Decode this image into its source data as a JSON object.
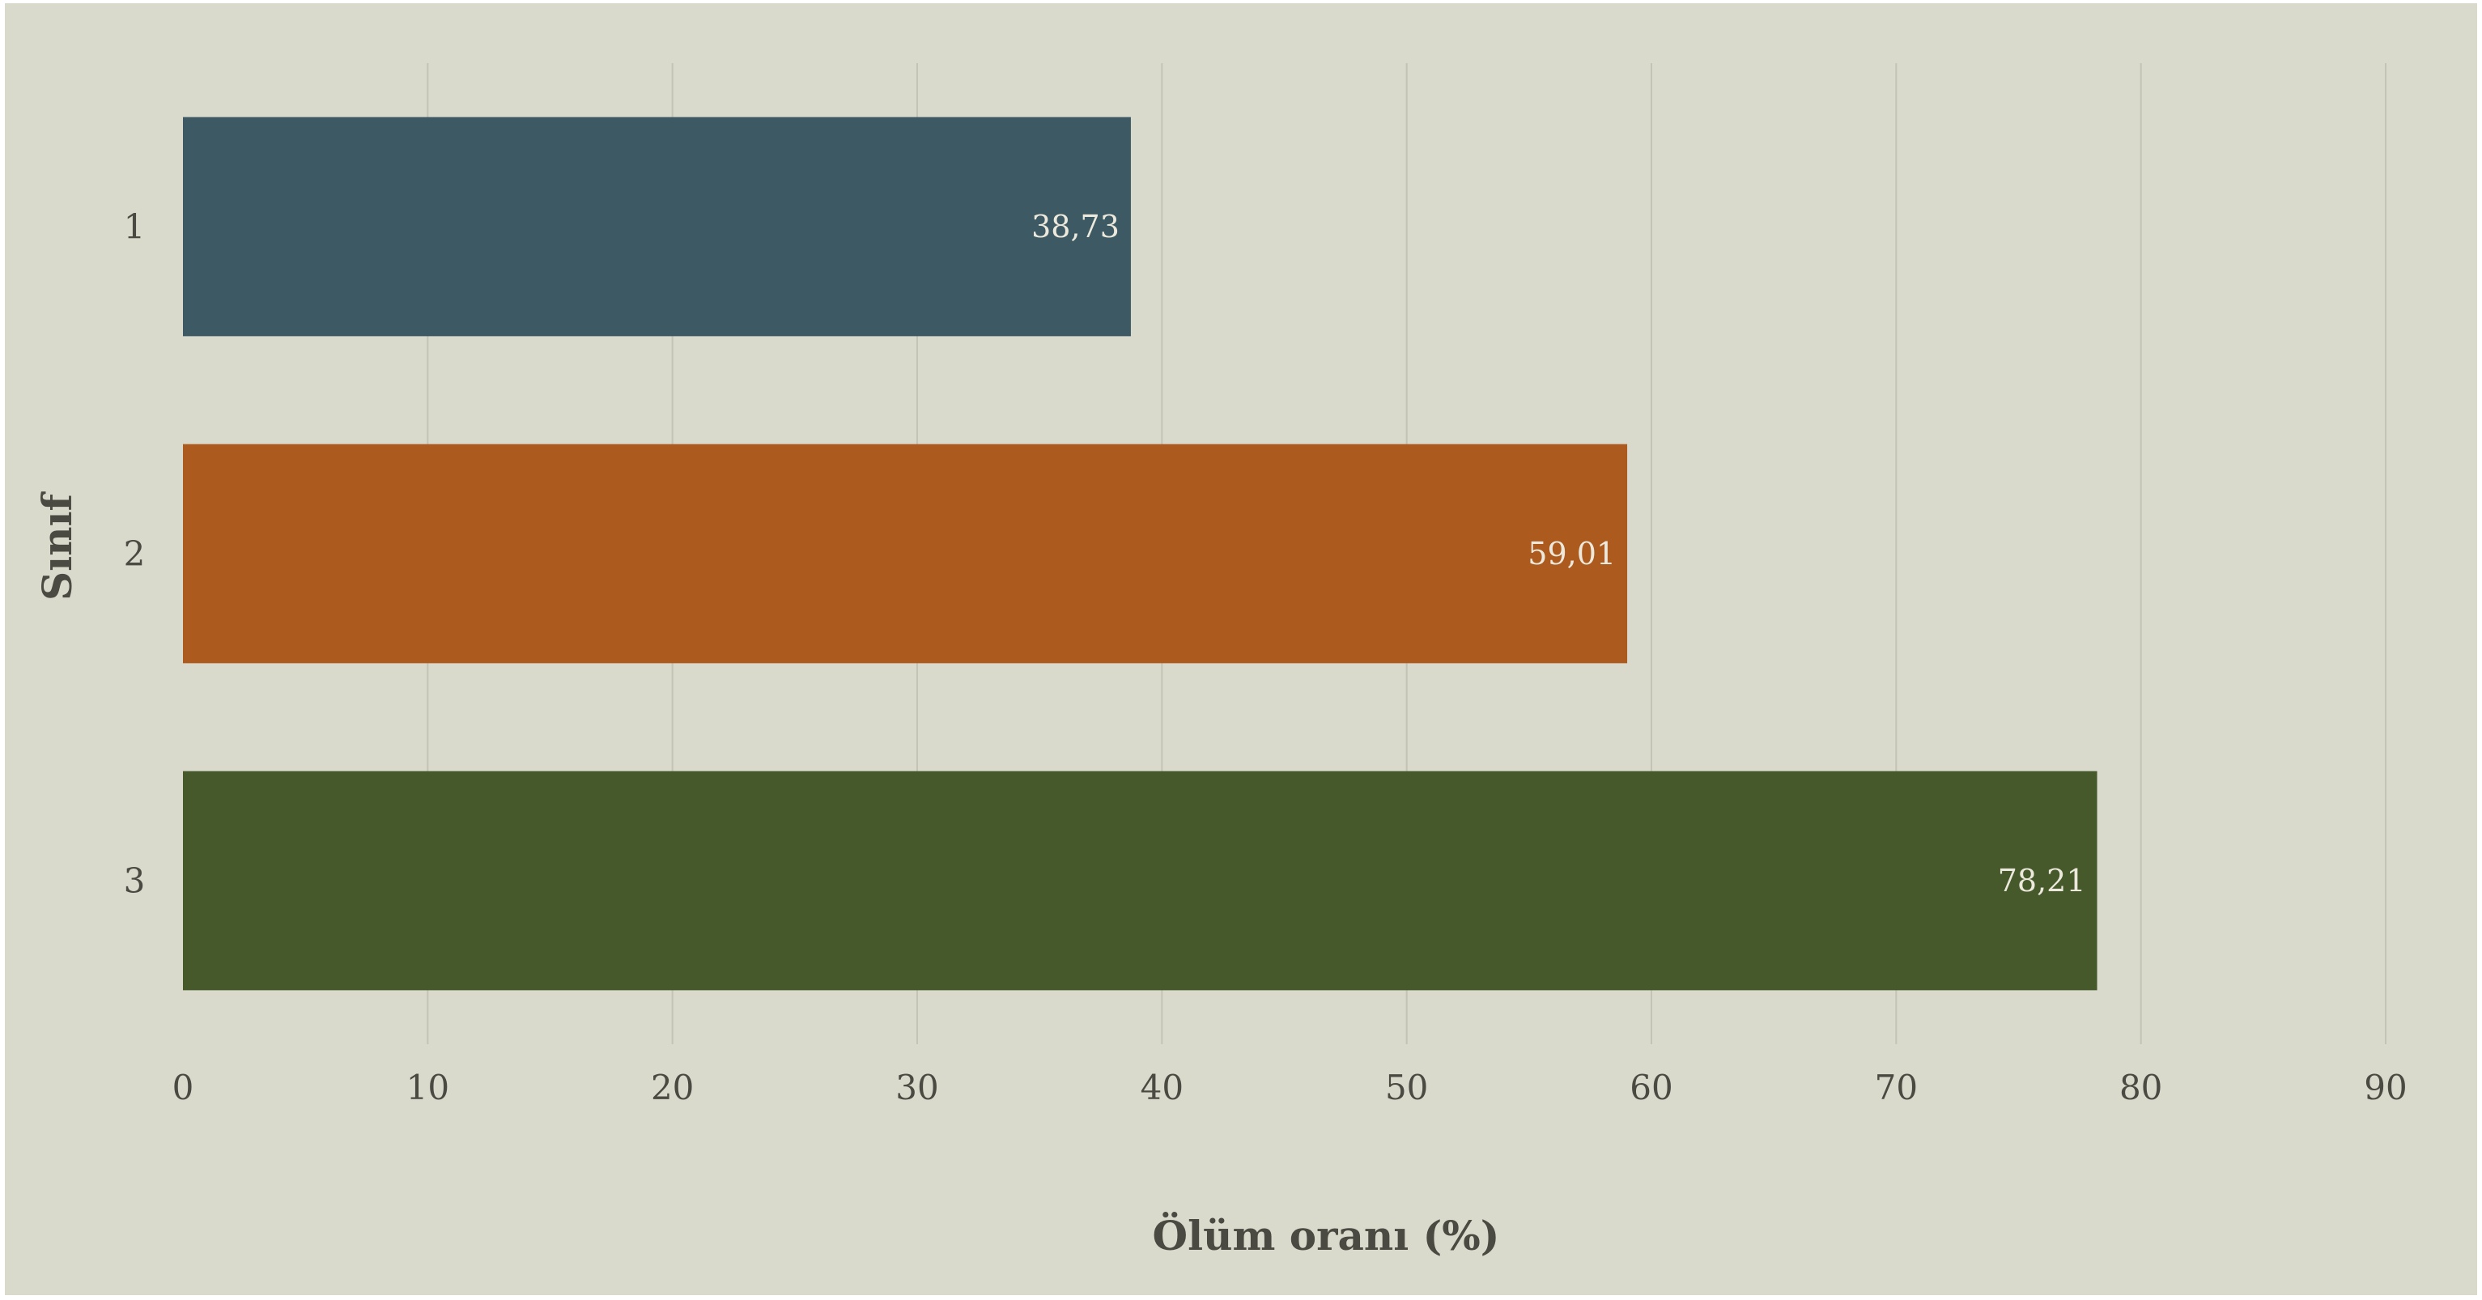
{
  "chart_data": {
    "type": "bar",
    "orientation": "horizontal",
    "categories": [
      "1",
      "2",
      "3"
    ],
    "values": [
      38.73,
      59.01,
      78.21
    ],
    "value_labels": [
      "38,73",
      "59,01",
      "78,21"
    ],
    "bar_colors": [
      "#3d5963",
      "#ac5a1e",
      "#45592b"
    ],
    "xlabel": "Ölüm oranı (%)",
    "ylabel": "Sınıf",
    "xlim": [
      0,
      90
    ],
    "xticks": [
      0,
      10,
      20,
      30,
      40,
      50,
      60,
      70,
      80,
      90
    ],
    "xtick_labels": [
      "0",
      "10",
      "20",
      "30",
      "40",
      "50",
      "60",
      "70",
      "80",
      "90"
    ],
    "grid": "vertical",
    "legend": "none"
  },
  "colors": {
    "background": "#d9d9cc",
    "grid": "#c3c4b5",
    "text": "#4a4a42",
    "bar_label_text": "#ece9dc"
  }
}
